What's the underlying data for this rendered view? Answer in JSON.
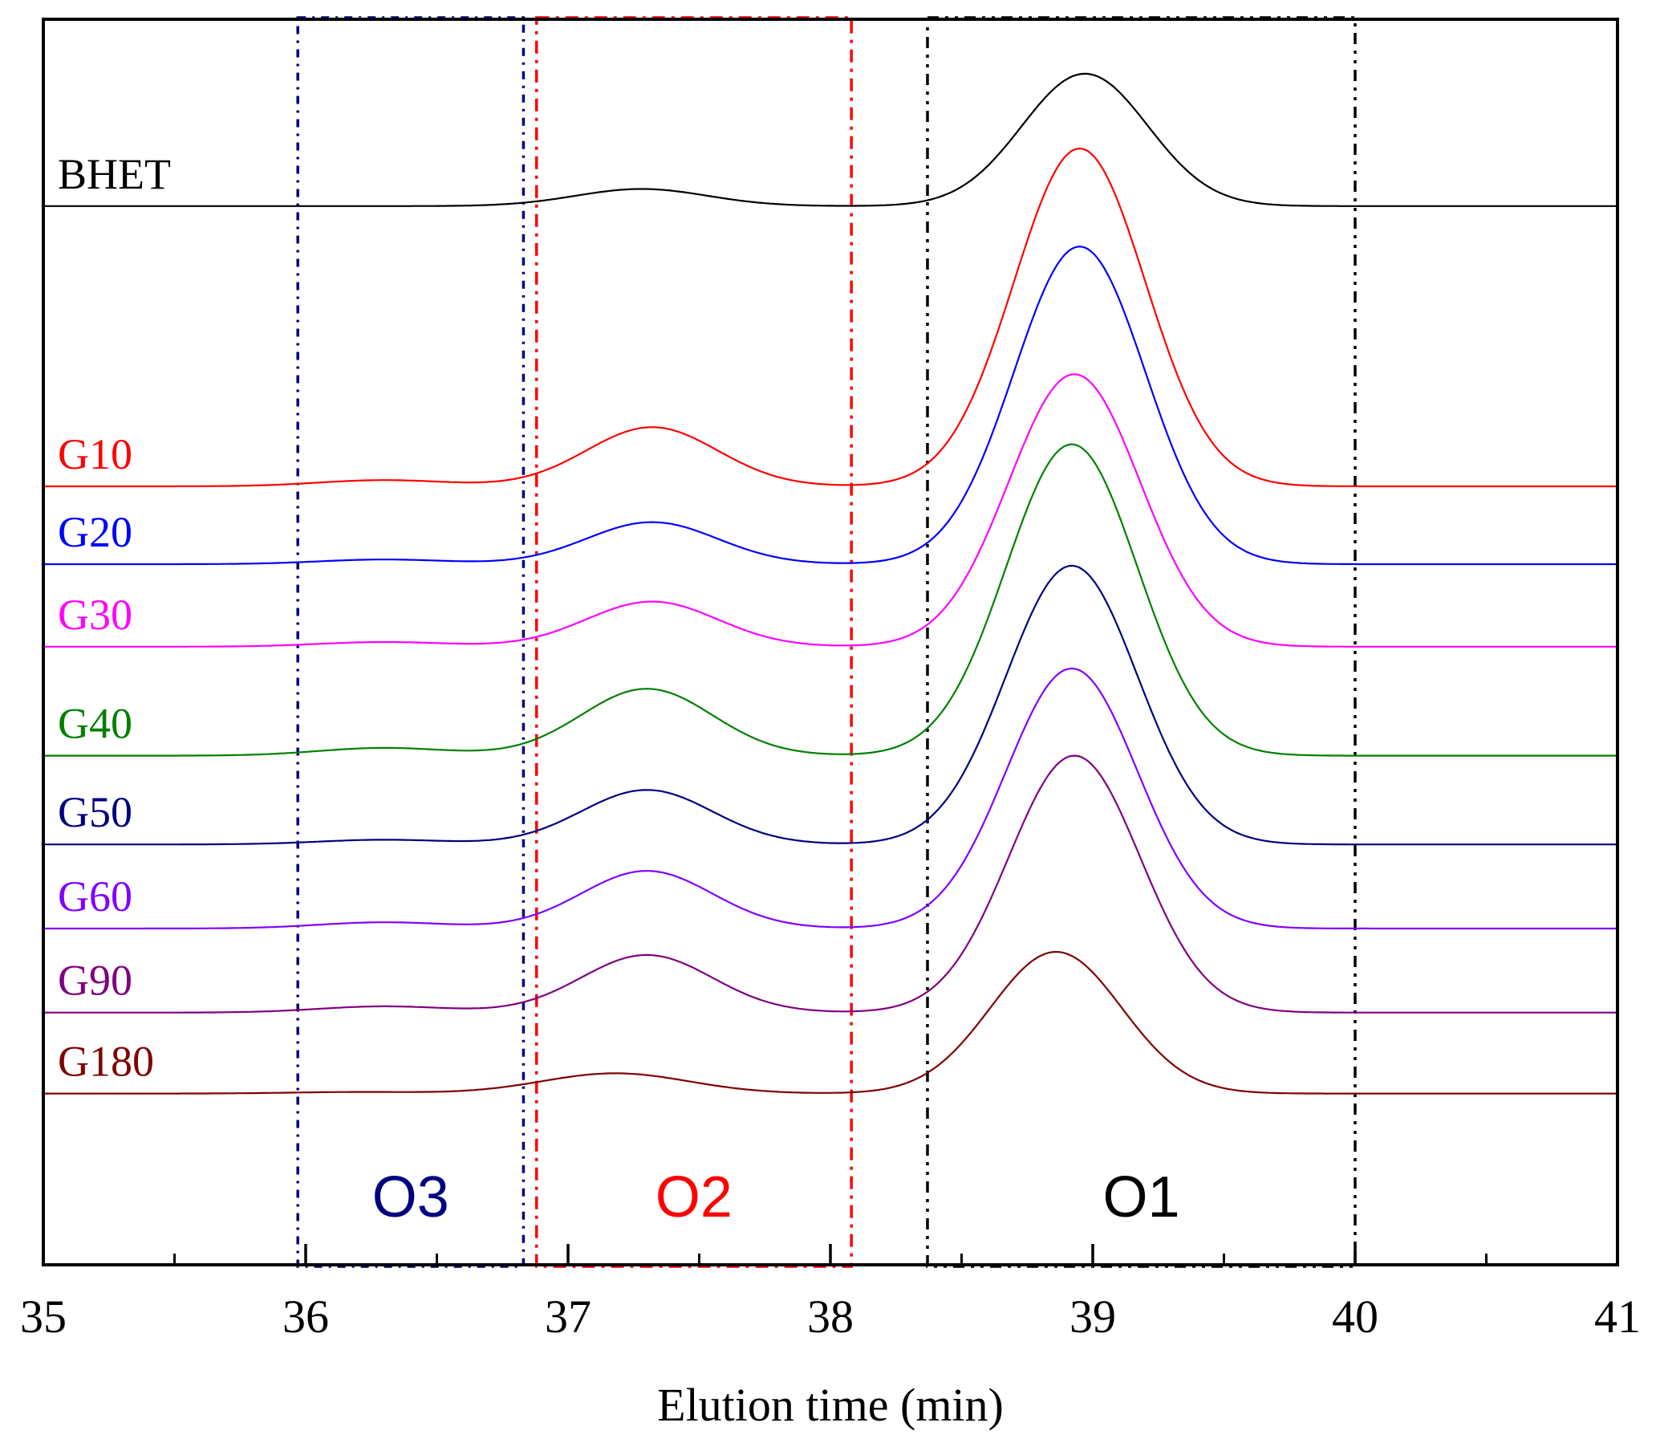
{
  "chart_data": {
    "type": "line",
    "title": "",
    "xlabel": "Elution time (min)",
    "ylabel": "",
    "xlim": [
      35,
      41
    ],
    "x_ticks": [
      "35",
      "36",
      "37",
      "38",
      "39",
      "40",
      "41"
    ],
    "x_minor_ticks": [
      35.5,
      36.5,
      37.5,
      38.5,
      39.5,
      40.5
    ],
    "y_axis_visible": false,
    "grid": false,
    "legend": "none",
    "series": [
      {
        "name": "BHET",
        "color": "#000000",
        "baseline": 0.0,
        "peaks": [
          {
            "x": 37.28,
            "height": 0.11,
            "width": 0.25
          },
          {
            "x": 38.97,
            "height": 0.85,
            "width": 0.24
          }
        ]
      },
      {
        "name": "G10",
        "color": "#ff0000",
        "baseline": -1.8,
        "peaks": [
          {
            "x": 36.3,
            "height": 0.04,
            "width": 0.25
          },
          {
            "x": 37.32,
            "height": 0.38,
            "width": 0.25
          },
          {
            "x": 38.95,
            "height": 2.17,
            "width": 0.25
          }
        ]
      },
      {
        "name": "G20",
        "color": "#0000ff",
        "baseline": -2.3,
        "peaks": [
          {
            "x": 36.3,
            "height": 0.03,
            "width": 0.25
          },
          {
            "x": 37.32,
            "height": 0.27,
            "width": 0.25
          },
          {
            "x": 38.95,
            "height": 2.04,
            "width": 0.25
          }
        ]
      },
      {
        "name": "G30",
        "color": "#ff00ff",
        "baseline": -2.83,
        "peaks": [
          {
            "x": 36.3,
            "height": 0.03,
            "width": 0.25
          },
          {
            "x": 37.32,
            "height": 0.29,
            "width": 0.25
          },
          {
            "x": 38.93,
            "height": 1.75,
            "width": 0.25
          }
        ]
      },
      {
        "name": "G40",
        "color": "#008000",
        "baseline": -3.53,
        "peaks": [
          {
            "x": 36.3,
            "height": 0.05,
            "width": 0.25
          },
          {
            "x": 37.3,
            "height": 0.43,
            "width": 0.25
          },
          {
            "x": 38.92,
            "height": 2.0,
            "width": 0.25
          }
        ]
      },
      {
        "name": "G50",
        "color": "#000080",
        "baseline": -4.1,
        "peaks": [
          {
            "x": 36.3,
            "height": 0.03,
            "width": 0.25
          },
          {
            "x": 37.3,
            "height": 0.35,
            "width": 0.25
          },
          {
            "x": 38.92,
            "height": 1.79,
            "width": 0.25
          }
        ]
      },
      {
        "name": "G60",
        "color": "#8000ff",
        "baseline": -4.64,
        "peaks": [
          {
            "x": 36.3,
            "height": 0.04,
            "width": 0.25
          },
          {
            "x": 37.3,
            "height": 0.37,
            "width": 0.25
          },
          {
            "x": 38.92,
            "height": 1.67,
            "width": 0.25
          }
        ]
      },
      {
        "name": "G90",
        "color": "#800080",
        "baseline": -5.18,
        "peaks": [
          {
            "x": 36.3,
            "height": 0.04,
            "width": 0.25
          },
          {
            "x": 37.3,
            "height": 0.37,
            "width": 0.25
          },
          {
            "x": 38.93,
            "height": 1.65,
            "width": 0.25
          }
        ]
      },
      {
        "name": "G180",
        "color": "#800000",
        "baseline": -5.7,
        "peaks": [
          {
            "x": 36.2,
            "height": 0.01,
            "width": 0.25
          },
          {
            "x": 37.18,
            "height": 0.13,
            "width": 0.28
          },
          {
            "x": 38.86,
            "height": 0.91,
            "width": 0.25
          }
        ]
      }
    ],
    "regions": [
      {
        "label": "O3",
        "x0": 35.97,
        "x1": 36.83,
        "color": "#000080"
      },
      {
        "label": "O2",
        "x0": 36.88,
        "x1": 38.08,
        "color": "#ff0000"
      },
      {
        "label": "O1",
        "x0": 38.37,
        "x1": 40.0,
        "color": "#000000"
      }
    ],
    "y_domain": [
      -6.8,
      1.2
    ]
  }
}
